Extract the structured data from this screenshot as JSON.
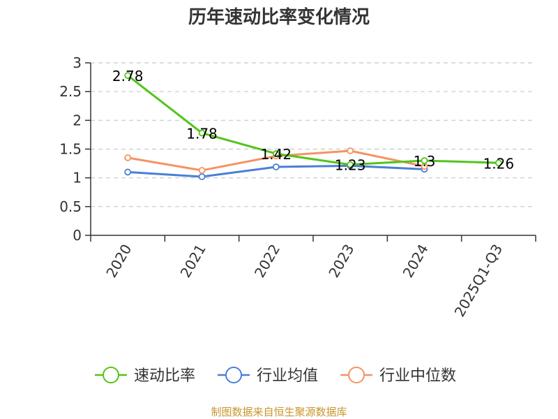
{
  "chart_data": {
    "type": "line",
    "title": "历年速动比率变化情况",
    "categories": [
      "2020",
      "2021",
      "2022",
      "2023",
      "2024",
      "2025Q1-Q3"
    ],
    "ylim": [
      0,
      3
    ],
    "yticks": [
      "0",
      "0.5",
      "1",
      "1.5",
      "2",
      "2.5",
      "3"
    ],
    "grid": true,
    "legend_position": "bottom",
    "series": [
      {
        "name": "速动比率",
        "color": "#52c41a",
        "values": [
          2.78,
          1.78,
          1.42,
          1.23,
          1.3,
          1.26
        ],
        "labels": [
          "2.78",
          "1.78",
          "1.42",
          "1.23",
          "1.3",
          "1.26"
        ]
      },
      {
        "name": "行业均值",
        "color": "#4a7fd6",
        "values": [
          1.1,
          1.02,
          1.19,
          1.21,
          1.15,
          null
        ]
      },
      {
        "name": "行业中位数",
        "color": "#f59362",
        "values": [
          1.35,
          1.13,
          1.38,
          1.47,
          1.2,
          null
        ]
      }
    ]
  },
  "source": "制图数据来自恒生聚源数据库"
}
